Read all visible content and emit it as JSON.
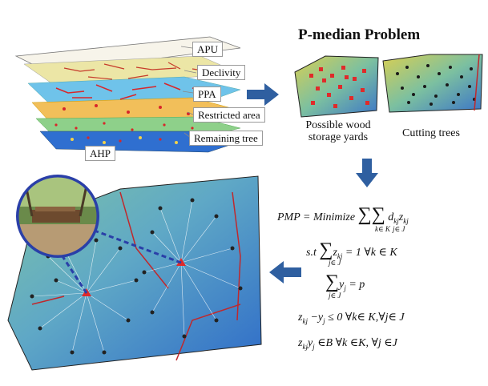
{
  "title": "P-median Problem",
  "layers": {
    "apu": "APU",
    "declivity": "Declivity",
    "ppa": "PPA",
    "restricted": "Restricted area",
    "remaining": "Remaining tree",
    "ahp": "AHP"
  },
  "captions": {
    "storage": "Possible wood storage yards",
    "cutting": "Cutting trees"
  },
  "equations": {
    "pmp_lhs": "PMP = Minimize",
    "pmp_term": "d",
    "pmp_sub1": "k∈ K",
    "pmp_sub2": "j∈ J",
    "st": "s.t",
    "c1_rhs": "= 1  ∀k ∈ K",
    "c1_sub": "j∈ J",
    "c2_rhs": "= p",
    "c2_sub": "j∈ J",
    "c3": "≤ 0  ∀k∈ K,∀j∈  J",
    "c4": "∈B  ∀k ∈K, ∀j ∈J"
  },
  "colors": {
    "arrow": "#2f5fa0",
    "apu": "#f4f0e2",
    "declivity": "#ece6a6",
    "ppa": "#6fc3ea",
    "restricted": "#f2bf5a",
    "remaining": "#8ed08a",
    "ahp": "#2f6fd0",
    "red": "#d8262a"
  }
}
